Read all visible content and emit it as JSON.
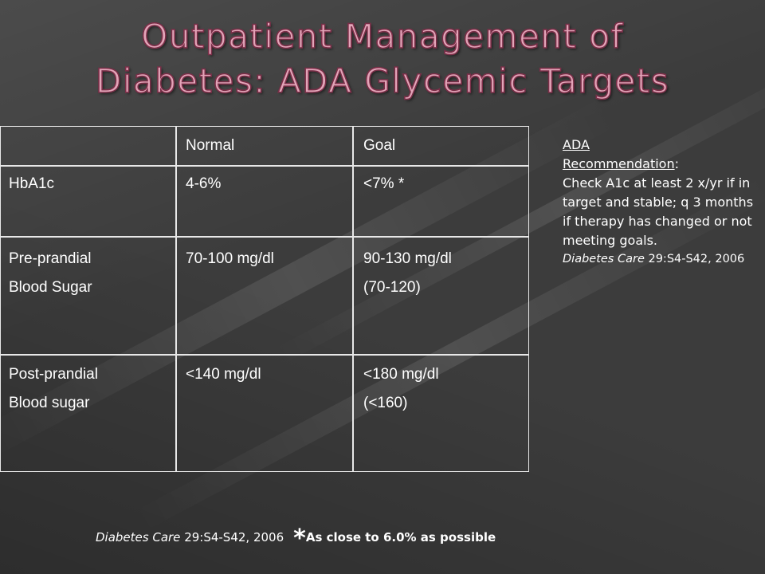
{
  "slide": {
    "title_line1": "Outpatient Management of",
    "title_line2": "Diabetes: ADA Glycemic Targets"
  },
  "table": {
    "headers": [
      "",
      "Normal",
      "Goal"
    ],
    "rows": [
      {
        "label_lines": [
          "HbA1c"
        ],
        "normal_lines": [
          "4-6%"
        ],
        "goal_lines": [
          "<7% *"
        ]
      },
      {
        "label_lines": [
          "Pre-prandial",
          "Blood Sugar"
        ],
        "normal_lines": [
          "70-100 mg/dl"
        ],
        "goal_lines": [
          "90-130 mg/dl",
          "(70-120)"
        ]
      },
      {
        "label_lines": [
          "Post-prandial",
          "Blood sugar"
        ],
        "normal_lines": [
          "<140 mg/dl"
        ],
        "goal_lines": [
          "<180 mg/dl",
          "(<160)"
        ]
      }
    ]
  },
  "sidebar": {
    "heading_line1": "ADA",
    "heading_underlined": "Recommendation",
    "heading_suffix": ":",
    "body": "Check A1c at least 2 x/yr if in target and stable; q 3 months if therapy has changed or not meeting goals.",
    "citation_journal": "Diabetes Care",
    "citation_rest": " 29:S4-S42, 2006"
  },
  "footer": {
    "citation_journal": "Diabetes Care",
    "citation_rest": " 29:S4-S42, 2006",
    "star": "*",
    "note": "As close to 6.0% as possible"
  }
}
